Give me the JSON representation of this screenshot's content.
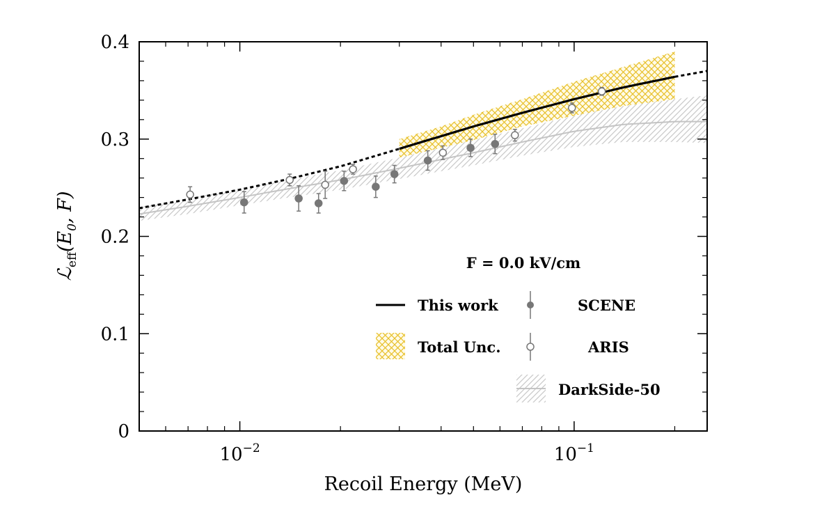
{
  "chart_data": {
    "type": "scatter",
    "xlabel": "Recoil Energy (MeV)",
    "ylabel": {
      "symbol": "ℒ",
      "subscript": "eff",
      "args": "(E",
      "arg_sub": "0",
      "args_end": ", F)"
    },
    "x_scale": "log",
    "xlim": [
      0.005,
      0.25
    ],
    "ylim": [
      0,
      0.4
    ],
    "x_ticks": [
      {
        "value": 0.01,
        "base": "10",
        "exp": "−2"
      },
      {
        "value": 0.1,
        "base": "10",
        "exp": "−1"
      }
    ],
    "y_ticks": [
      {
        "value": 0,
        "label": "0"
      },
      {
        "value": 0.1,
        "label": "0.1"
      },
      {
        "value": 0.2,
        "label": "0.2"
      },
      {
        "value": 0.3,
        "label": "0.3"
      },
      {
        "value": 0.4,
        "label": "0.4"
      }
    ],
    "annotation": "F = 0.0 kV/cm",
    "legend_position": "bottom-right",
    "series": [
      {
        "name": "This work",
        "kind": "line",
        "color": "#000000",
        "solid_range": [
          0.03,
          0.2
        ],
        "x": [
          0.005,
          0.007,
          0.01,
          0.014,
          0.02,
          0.03,
          0.04,
          0.05,
          0.07,
          0.1,
          0.14,
          0.2,
          0.25
        ],
        "y": [
          0.229,
          0.238,
          0.248,
          0.259,
          0.272,
          0.29,
          0.303,
          0.313,
          0.327,
          0.341,
          0.353,
          0.364,
          0.37
        ]
      },
      {
        "name": "Total Unc.",
        "kind": "band",
        "color": "#e8c02a",
        "x": [
          0.03,
          0.04,
          0.05,
          0.07,
          0.1,
          0.14,
          0.2
        ],
        "y_low": [
          0.281,
          0.291,
          0.299,
          0.313,
          0.324,
          0.334,
          0.341
        ],
        "y_high": [
          0.3,
          0.313,
          0.325,
          0.341,
          0.359,
          0.374,
          0.39
        ]
      },
      {
        "name": "DarkSide-50",
        "kind": "line+band",
        "color": "#bbbbbb",
        "x": [
          0.005,
          0.007,
          0.01,
          0.014,
          0.02,
          0.03,
          0.04,
          0.05,
          0.07,
          0.1,
          0.14,
          0.2,
          0.25
        ],
        "y": [
          0.223,
          0.231,
          0.24,
          0.249,
          0.258,
          0.27,
          0.279,
          0.286,
          0.297,
          0.308,
          0.315,
          0.318,
          0.318
        ],
        "y_low": [
          0.216,
          0.223,
          0.232,
          0.24,
          0.248,
          0.259,
          0.267,
          0.273,
          0.283,
          0.292,
          0.297,
          0.297,
          0.296
        ],
        "y_high": [
          0.23,
          0.239,
          0.249,
          0.258,
          0.268,
          0.281,
          0.291,
          0.299,
          0.311,
          0.324,
          0.334,
          0.341,
          0.345
        ]
      },
      {
        "name": "SCENE",
        "kind": "points",
        "marker": "filled",
        "color": "#777777",
        "x": [
          0.0103,
          0.015,
          0.0172,
          0.0205,
          0.0255,
          0.029,
          0.0365,
          0.049,
          0.058
        ],
        "y": [
          0.235,
          0.239,
          0.234,
          0.257,
          0.251,
          0.264,
          0.278,
          0.291,
          0.295
        ],
        "err": [
          0.011,
          0.013,
          0.01,
          0.01,
          0.011,
          0.009,
          0.01,
          0.009,
          0.01
        ]
      },
      {
        "name": "ARIS",
        "kind": "points",
        "marker": "open",
        "color": "#777777",
        "x": [
          0.0071,
          0.0141,
          0.018,
          0.0218,
          0.0405,
          0.0665,
          0.0985,
          0.121
        ],
        "y": [
          0.243,
          0.258,
          0.253,
          0.269,
          0.286,
          0.304,
          0.332,
          0.349
        ],
        "err": [
          0.008,
          0.006,
          0.014,
          0.005,
          0.007,
          0.006,
          0.005,
          0.004
        ]
      }
    ]
  }
}
